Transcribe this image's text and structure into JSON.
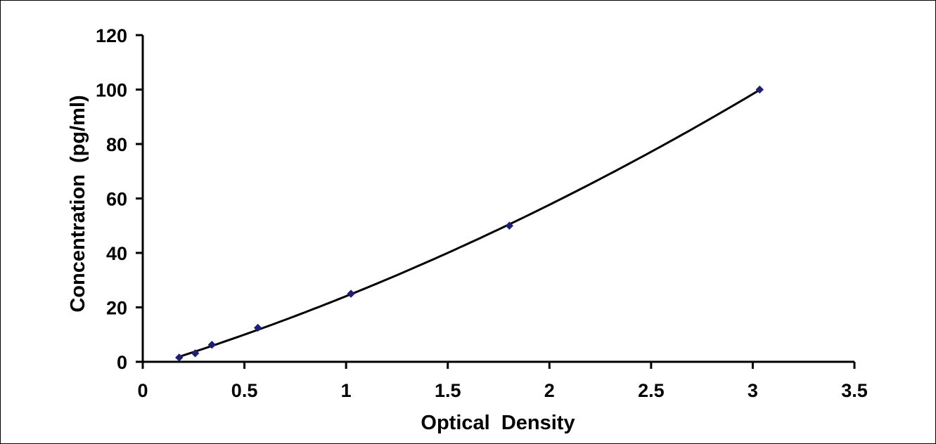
{
  "chart_data": {
    "type": "scatter",
    "title": "",
    "xlabel": "Optical  Density",
    "ylabel": "Concentration  (pg/ml)",
    "xlim": [
      0,
      3.5
    ],
    "ylim": [
      0,
      120
    ],
    "x_ticks": [
      0,
      0.5,
      1,
      1.5,
      2,
      2.5,
      3,
      3.5
    ],
    "y_ticks": [
      0,
      20,
      40,
      60,
      80,
      100,
      120
    ],
    "x_tick_labels": [
      "0",
      "0.5",
      "1",
      "1.5",
      "2",
      "2.5",
      "3",
      "3.5"
    ],
    "y_tick_labels": [
      "0",
      "20",
      "40",
      "60",
      "80",
      "100",
      "120"
    ],
    "grid": false,
    "legend": "none",
    "trendline": "polynomial",
    "series": [
      {
        "marker": "diamond",
        "color": "#1f1f7a",
        "line_color": "#000000",
        "x": [
          0.179,
          0.258,
          0.34,
          0.566,
          1.024,
          1.803,
          3.034
        ],
        "y": [
          1.56,
          3.12,
          6.25,
          12.5,
          25,
          50,
          100
        ]
      }
    ]
  }
}
